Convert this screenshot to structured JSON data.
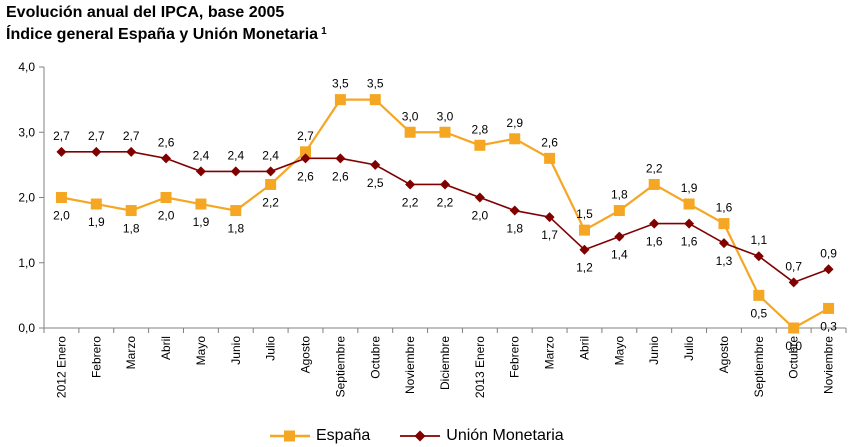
{
  "chart_data": {
    "type": "line",
    "title": "Evolución anual del IPCA, base 2005",
    "subtitle": "Índice general España y Unión Monetaria",
    "subtitle_footnote": "1",
    "xlabel": "",
    "ylabel": "",
    "ylim": [
      0,
      4
    ],
    "yticks": [
      "0,0",
      "1,0",
      "2,0",
      "3,0",
      "4,0"
    ],
    "grid": false,
    "legend_position": "bottom",
    "categories": [
      "2012 Enero",
      "Febrero",
      "Marzo",
      "Abril",
      "Mayo",
      "Junio",
      "Julio",
      "Agosto",
      "Septiembre",
      "Octubre",
      "Noviembre",
      "Diciembre",
      "2013 Enero",
      "Febrero",
      "Marzo",
      "Abril",
      "Mayo",
      "Junio",
      "Julio",
      "Agosto",
      "Septiembre",
      "Octubre",
      "Noviembre"
    ],
    "series": [
      {
        "name": "España",
        "color": "#f5a623",
        "marker": "square",
        "values": [
          2.0,
          1.9,
          1.8,
          2.0,
          1.9,
          1.8,
          2.2,
          2.7,
          3.5,
          3.5,
          3.0,
          3.0,
          2.8,
          2.9,
          2.6,
          1.5,
          1.8,
          2.2,
          1.9,
          1.6,
          0.5,
          0.0,
          0.3
        ],
        "labels": [
          "2,0",
          "1,9",
          "1,8",
          "2,0",
          "1,9",
          "1,8",
          "2,2",
          "2,7",
          "3,5",
          "3,5",
          "3,0",
          "3,0",
          "2,8",
          "2,9",
          "2,6",
          "1,5",
          "1,8",
          "2,2",
          "1,9",
          "1,6",
          "0,5",
          "0,0",
          "0,3"
        ]
      },
      {
        "name": "Unión Monetaria",
        "color": "#800000",
        "marker": "diamond",
        "values": [
          2.7,
          2.7,
          2.7,
          2.6,
          2.4,
          2.4,
          2.4,
          2.6,
          2.6,
          2.5,
          2.2,
          2.2,
          2.0,
          1.8,
          1.7,
          1.2,
          1.4,
          1.6,
          1.6,
          1.3,
          1.1,
          0.7,
          0.9
        ],
        "labels": [
          "2,7",
          "2,7",
          "2,7",
          "2,6",
          "2,4",
          "2,4",
          "2,4",
          "2,6",
          "2,6",
          "2,5",
          "2,2",
          "2,2",
          "2,0",
          "1,8",
          "1,7",
          "1,2",
          "1,4",
          "1,6",
          "1,6",
          "1,3",
          "1,1",
          "0,7",
          "0,9"
        ]
      }
    ]
  }
}
